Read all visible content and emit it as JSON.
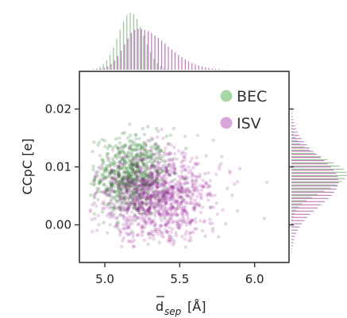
{
  "chart_data": {
    "type": "scatter",
    "xlabel_main": "d",
    "xlabel_sub": "sep",
    "xlabel_unit": "[Å]",
    "ylabel": "CCpC [e]",
    "xlim": [
      4.83,
      6.23
    ],
    "ylim": [
      -0.0065,
      0.0265
    ],
    "x_ticks": [
      5.0,
      5.5,
      6.0
    ],
    "x_tick_labels": [
      "5.0",
      "5.5",
      "6.0"
    ],
    "y_ticks": [
      0.0,
      0.01,
      0.02
    ],
    "y_tick_labels": [
      "0.00",
      "0.01",
      "0.02"
    ],
    "grid": false,
    "legend_position": "top-right",
    "series": [
      {
        "name": "BEC",
        "color": "#2e7d2e",
        "marker_color": "#a8d8a8",
        "x_center": 5.18,
        "x_spread": 0.12,
        "y_center": 0.0085,
        "y_spread": 0.0035,
        "x_range": [
          4.9,
          5.8
        ],
        "y_range": [
          -0.002,
          0.019
        ]
      },
      {
        "name": "ISV",
        "color": "#8b008b",
        "marker_color": "#d9a6d9",
        "x_center": 5.3,
        "x_spread": 0.18,
        "y_center": 0.005,
        "y_spread": 0.004,
        "x_range": [
          4.9,
          6.15
        ],
        "y_range": [
          -0.004,
          0.024
        ]
      }
    ],
    "marginal_histograms": {
      "top": "x distribution of each series",
      "right": "y distribution of each series"
    }
  }
}
